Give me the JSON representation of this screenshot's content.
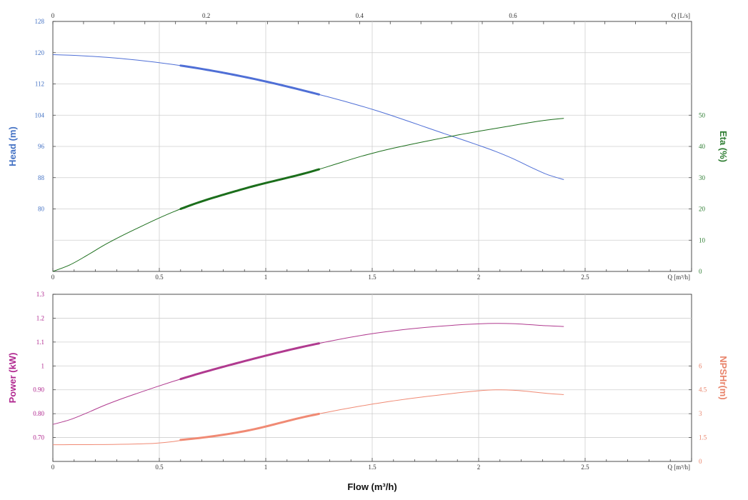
{
  "chart_data": [
    {
      "type": "line",
      "panel": "top",
      "grid": true,
      "x_axis_bottom": {
        "unit": "Q [m³/h]",
        "range": [
          0,
          3
        ],
        "ticks": [
          "0",
          "0.5",
          "1",
          "1.5",
          "2",
          "2.5"
        ],
        "tick_values": [
          0,
          0.5,
          1,
          1.5,
          2,
          2.5
        ]
      },
      "x_axis_top": {
        "unit": "Q [L/s]",
        "range": [
          0,
          0.833
        ],
        "ticks": [
          "0",
          "0.2",
          "0.4",
          "0.6"
        ],
        "tick_values": [
          0,
          0.2,
          0.4,
          0.6
        ]
      },
      "y_axis_left": {
        "label": "Head (m)",
        "color": "#4472C4",
        "range": [
          64,
          128
        ],
        "ticks": [
          "128",
          "120",
          "112",
          "104",
          "96",
          "88",
          "80"
        ],
        "tick_values": [
          128,
          120,
          112,
          104,
          96,
          88,
          80
        ]
      },
      "y_axis_right": {
        "label": "Eta (%)",
        "color": "#2E7D32",
        "range": [
          0,
          80
        ],
        "ticks": [
          "50",
          "40",
          "30",
          "20",
          "10",
          "0"
        ],
        "tick_values": [
          50,
          40,
          30,
          20,
          10,
          0
        ]
      },
      "series": [
        {
          "key": "head",
          "axis": "left",
          "color": "#4F6FD6",
          "x": [
            0,
            0.3,
            0.6,
            0.9,
            1.2,
            1.5,
            1.8,
            2.1,
            2.4
          ],
          "y": [
            119.5,
            118.6,
            116.7,
            113.8,
            110.0,
            105.5,
            100.0,
            94.3,
            87.5
          ],
          "highlight": [
            0.6,
            1.25
          ]
        },
        {
          "key": "eta",
          "axis": "right",
          "color": "#1B6E1B",
          "x": [
            0,
            0.3,
            0.6,
            0.9,
            1.2,
            1.5,
            1.8,
            2.1,
            2.4
          ],
          "y": [
            0,
            10.6,
            20.0,
            26.5,
            31.7,
            37.8,
            42.3,
            46.0,
            49.0
          ],
          "highlight": [
            0.6,
            1.25
          ]
        }
      ]
    },
    {
      "type": "line",
      "panel": "bottom",
      "grid": true,
      "x_axis": {
        "label": "Flow (m³/h)",
        "unit": "Q [m³/h]",
        "range": [
          0,
          3
        ],
        "ticks": [
          "0",
          "0.5",
          "1",
          "1.5",
          "2",
          "2.5"
        ],
        "tick_values": [
          0,
          0.5,
          1,
          1.5,
          2,
          2.5
        ]
      },
      "y_axis_left": {
        "label": "Power (kW)",
        "color": "#B0278F",
        "range": [
          0.6,
          1.3
        ],
        "ticks": [
          "1.3",
          "1.2",
          "1.1",
          "1",
          "0.90",
          "0.80",
          "0.70"
        ],
        "tick_values": [
          1.3,
          1.2,
          1.1,
          1.0,
          0.9,
          0.8,
          0.7
        ]
      },
      "y_axis_right": {
        "label": "NPSHr(m)",
        "color": "#E8836A",
        "range": [
          0,
          10.5
        ],
        "ticks": [
          "6",
          "4.5",
          "3",
          "1.5",
          "0"
        ],
        "tick_values": [
          6,
          4.5,
          3,
          1.5,
          0
        ]
      },
      "series": [
        {
          "key": "power",
          "axis": "left",
          "color": "#B03A8F",
          "x": [
            0,
            0.3,
            0.6,
            0.9,
            1.2,
            1.5,
            1.8,
            2.1,
            2.4
          ],
          "y": [
            0.755,
            0.855,
            0.945,
            1.02,
            1.085,
            1.135,
            1.165,
            1.178,
            1.165
          ],
          "highlight": [
            0.6,
            1.25
          ]
        },
        {
          "key": "npshr",
          "axis": "right",
          "color": "#F08A74",
          "x": [
            0,
            0.3,
            0.5,
            0.6,
            0.9,
            1.2,
            1.5,
            1.8,
            2.1,
            2.4
          ],
          "y": [
            1.05,
            1.07,
            1.15,
            1.35,
            1.9,
            2.85,
            3.6,
            4.15,
            4.5,
            4.2
          ],
          "highlight": [
            0.6,
            1.25
          ]
        }
      ]
    }
  ]
}
